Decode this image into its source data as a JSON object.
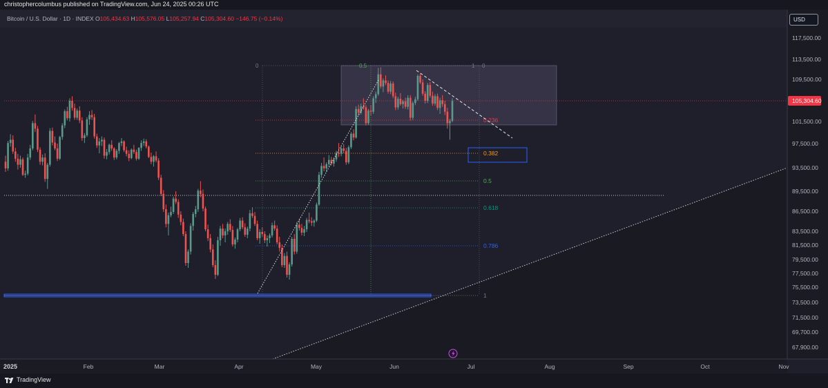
{
  "header": {
    "attribution": "christophercolumbus published on TradingView.com, Jun 24, 2025 00:26 UTC"
  },
  "legend": {
    "symbol": "Bitcoin / U.S. Dollar · 1D · INDEX",
    "open_label": "O",
    "open": "105,434.63",
    "high_label": "H",
    "high": "105,576.05",
    "low_label": "L",
    "low": "105,257.94",
    "close_label": "C",
    "close": "105,304.60",
    "change": "−146.75 (−0.14%)"
  },
  "currency": "USD",
  "footer": {
    "brand": "TradingView"
  },
  "colors": {
    "up": "#5b9a8b",
    "down": "#ef5350",
    "background": "#1e1f2b",
    "price_tag": "#f23645"
  },
  "chart_data": {
    "type": "candlestick",
    "x_ticks": [
      "2025",
      "Feb",
      "Mar",
      "Apr",
      "May",
      "Jun",
      "Jul",
      "Aug",
      "Sep",
      "Oct",
      "Nov"
    ],
    "y_ticks": [
      "117,500.00",
      "113,500.00",
      "109,500.00",
      "105,304.60",
      "101,500.00",
      "97,500.00",
      "93,500.00",
      "89,500.00",
      "86,500.00",
      "83,500.00",
      "81,500.00",
      "79,500.00",
      "77,500.00",
      "75,500.00",
      "73,500.00",
      "71,500.00",
      "69,700.00",
      "67,900.00"
    ],
    "last_price": "105,304.60",
    "fib_retracement": {
      "levels": [
        "0",
        "0.236",
        "0.382",
        "0.5",
        "0.618",
        "0.786",
        "1"
      ],
      "colors": [
        "#787b86",
        "#f23645",
        "#ff9800",
        "#4caf50",
        "#089981",
        "#2962ff",
        "#787b86"
      ]
    },
    "fib_marker_left": "0",
    "fib_marker_mid": "0.5",
    "fib_marker_right": "1",
    "events_icon": "lightning-icon",
    "candles": [
      [
        94500,
        95500,
        92800,
        93400
      ],
      [
        93400,
        98000,
        93000,
        97600
      ],
      [
        97600,
        99200,
        97000,
        98200
      ],
      [
        98200,
        99000,
        95800,
        96200
      ],
      [
        96200,
        96800,
        94500,
        95000
      ],
      [
        95000,
        95800,
        93200,
        94000
      ],
      [
        94000,
        95500,
        93500,
        94900
      ],
      [
        94900,
        95200,
        92100,
        92300
      ],
      [
        92300,
        93000,
        91800,
        92500
      ],
      [
        92500,
        95800,
        92200,
        95200
      ],
      [
        95200,
        97300,
        94800,
        96700
      ],
      [
        96700,
        101600,
        96400,
        101200
      ],
      [
        101200,
        102800,
        99600,
        100200
      ],
      [
        100200,
        100700,
        96100,
        96500
      ],
      [
        96500,
        96900,
        94000,
        94500
      ],
      [
        94500,
        95700,
        93900,
        95200
      ],
      [
        95200,
        95900,
        91100,
        91600
      ],
      [
        91600,
        94300,
        89900,
        94000
      ],
      [
        94000,
        100300,
        93700,
        99800
      ],
      [
        99800,
        100400,
        97200,
        97700
      ],
      [
        97700,
        98800,
        96400,
        96700
      ],
      [
        96700,
        97500,
        94600,
        95000
      ],
      [
        95000,
        98900,
        94800,
        98700
      ],
      [
        98700,
        101200,
        98200,
        100800
      ],
      [
        100800,
        103700,
        100300,
        103400
      ],
      [
        103400,
        104200,
        101700,
        102100
      ],
      [
        102100,
        105800,
        101500,
        105300
      ],
      [
        105300,
        106200,
        103500,
        104000
      ],
      [
        104000,
        104800,
        101800,
        102200
      ],
      [
        102200,
        103900,
        101800,
        103500
      ],
      [
        103500,
        104300,
        101200,
        101700
      ],
      [
        101700,
        102300,
        98000,
        98500
      ],
      [
        98500,
        99400,
        97600,
        99000
      ],
      [
        99000,
        102300,
        98700,
        101900
      ],
      [
        101900,
        103400,
        100900,
        102700
      ],
      [
        102700,
        103600,
        101800,
        102300
      ],
      [
        102300,
        102900,
        98400,
        98800
      ],
      [
        98800,
        99300,
        96800,
        97200
      ],
      [
        97200,
        98500,
        95900,
        97900
      ],
      [
        97900,
        98800,
        97100,
        98200
      ],
      [
        98200,
        98600,
        95000,
        95500
      ],
      [
        95500,
        96600,
        94900,
        96100
      ],
      [
        96100,
        97500,
        95700,
        97300
      ],
      [
        97300,
        98100,
        96300,
        96700
      ],
      [
        96700,
        96900,
        94800,
        95200
      ],
      [
        95200,
        96600,
        94900,
        96300
      ],
      [
        96300,
        97800,
        95800,
        97600
      ],
      [
        97600,
        98500,
        97100,
        97900
      ],
      [
        97900,
        98100,
        96100,
        96400
      ],
      [
        96400,
        97000,
        95400,
        95800
      ],
      [
        95800,
        96400,
        94600,
        95100
      ],
      [
        95100,
        96700,
        94900,
        96500
      ],
      [
        96500,
        97300,
        95800,
        96100
      ],
      [
        96100,
        96500,
        94700,
        95000
      ],
      [
        95000,
        96900,
        94800,
        96800
      ],
      [
        96800,
        98100,
        96300,
        97600
      ],
      [
        97600,
        98400,
        97100,
        97900
      ],
      [
        97900,
        98300,
        96700,
        97000
      ],
      [
        97000,
        97200,
        95100,
        95300
      ],
      [
        95300,
        96000,
        94100,
        94500
      ],
      [
        94500,
        95600,
        93700,
        95400
      ],
      [
        95400,
        96200,
        94400,
        94700
      ],
      [
        94700,
        95100,
        91400,
        91800
      ],
      [
        91800,
        92300,
        88800,
        89100
      ],
      [
        89100,
        89700,
        86400,
        86800
      ],
      [
        86800,
        87500,
        84100,
        84600
      ],
      [
        84600,
        86300,
        82900,
        85900
      ],
      [
        85900,
        87200,
        85600,
        86400
      ],
      [
        86400,
        88700,
        86100,
        88400
      ],
      [
        88400,
        89500,
        87600,
        87900
      ],
      [
        87900,
        88300,
        85500,
        86000
      ],
      [
        86000,
        86500,
        84400,
        84900
      ],
      [
        84900,
        85400,
        82800,
        83100
      ],
      [
        83100,
        83500,
        78600,
        79000
      ],
      [
        79000,
        80900,
        78300,
        80600
      ],
      [
        80600,
        84700,
        80200,
        84300
      ],
      [
        84300,
        86400,
        83600,
        86100
      ],
      [
        86100,
        87300,
        85600,
        86800
      ],
      [
        86800,
        89900,
        86400,
        89600
      ],
      [
        89600,
        91200,
        88600,
        89100
      ],
      [
        89100,
        89800,
        86500,
        86900
      ],
      [
        86900,
        87200,
        83500,
        83800
      ],
      [
        83800,
        84500,
        82100,
        82500
      ],
      [
        82500,
        83100,
        80500,
        80900
      ],
      [
        80900,
        81600,
        78400,
        78700
      ],
      [
        78700,
        79400,
        76700,
        77300
      ],
      [
        77300,
        82700,
        77100,
        82200
      ],
      [
        82200,
        84300,
        81400,
        83900
      ],
      [
        83900,
        84600,
        82500,
        82900
      ],
      [
        82900,
        83900,
        81900,
        83500
      ],
      [
        83500,
        84900,
        83000,
        84600
      ],
      [
        84600,
        85300,
        83400,
        83700
      ],
      [
        83700,
        84300,
        81300,
        81600
      ],
      [
        81600,
        82600,
        81000,
        82300
      ],
      [
        82300,
        84000,
        81900,
        83800
      ],
      [
        83800,
        85500,
        83500,
        85100
      ],
      [
        85100,
        85600,
        83800,
        84100
      ],
      [
        84100,
        84700,
        82700,
        83000
      ],
      [
        83000,
        84200,
        82500,
        83900
      ],
      [
        83900,
        86700,
        83500,
        86200
      ],
      [
        86200,
        87100,
        85500,
        85800
      ],
      [
        85800,
        86400,
        84300,
        84600
      ],
      [
        84600,
        85100,
        82200,
        82500
      ],
      [
        82500,
        83800,
        81700,
        83400
      ],
      [
        83400,
        84100,
        82700,
        83100
      ],
      [
        83100,
        83500,
        81800,
        82200
      ],
      [
        82200,
        82900,
        81300,
        82500
      ],
      [
        82500,
        83200,
        81800,
        82900
      ],
      [
        82900,
        84800,
        82600,
        84400
      ],
      [
        84400,
        85100,
        83600,
        83900
      ],
      [
        83900,
        84400,
        81600,
        81900
      ],
      [
        81900,
        82700,
        80600,
        81100
      ],
      [
        81100,
        81600,
        78400,
        78700
      ],
      [
        78700,
        80400,
        78300,
        80000
      ],
      [
        80000,
        80600,
        76900,
        77300
      ],
      [
        77300,
        79100,
        76600,
        78800
      ],
      [
        78800,
        82700,
        78500,
        82400
      ],
      [
        82400,
        83100,
        80200,
        80600
      ],
      [
        80600,
        84900,
        80300,
        84500
      ],
      [
        84500,
        85400,
        83600,
        84000
      ],
      [
        84000,
        84600,
        82900,
        83300
      ],
      [
        83300,
        84300,
        82800,
        83800
      ],
      [
        83800,
        85500,
        83400,
        85200
      ],
      [
        85200,
        86300,
        84700,
        85000
      ],
      [
        85000,
        85600,
        84300,
        84800
      ],
      [
        84800,
        85300,
        84200,
        85100
      ],
      [
        85100,
        87800,
        84900,
        87500
      ],
      [
        87500,
        92800,
        87300,
        92300
      ],
      [
        92300,
        94300,
        91800,
        93800
      ],
      [
        93800,
        95200,
        92900,
        93400
      ],
      [
        93400,
        94400,
        92800,
        94100
      ],
      [
        94100,
        95600,
        93600,
        94800
      ],
      [
        94800,
        95300,
        93900,
        94200
      ],
      [
        94200,
        95200,
        93700,
        94900
      ],
      [
        94900,
        96300,
        94500,
        96000
      ],
      [
        96000,
        97600,
        95300,
        95800
      ],
      [
        95800,
        97100,
        95400,
        96700
      ],
      [
        96700,
        97400,
        95900,
        96300
      ],
      [
        96300,
        96800,
        94000,
        94400
      ],
      [
        94400,
        97200,
        94100,
        96900
      ],
      [
        96900,
        99600,
        96600,
        99300
      ],
      [
        99300,
        100100,
        98100,
        98600
      ],
      [
        98600,
        104300,
        98400,
        103800
      ],
      [
        103800,
        104600,
        102600,
        103100
      ],
      [
        103100,
        104800,
        102800,
        104300
      ],
      [
        104300,
        105800,
        103700,
        104100
      ],
      [
        104100,
        104500,
        100800,
        101200
      ],
      [
        101200,
        103800,
        100900,
        103500
      ],
      [
        103500,
        104500,
        102600,
        103300
      ],
      [
        103300,
        106200,
        102900,
        105800
      ],
      [
        105800,
        107100,
        104900,
        106600
      ],
      [
        106600,
        111800,
        106300,
        110500
      ],
      [
        110500,
        111900,
        107700,
        108100
      ],
      [
        108100,
        109700,
        107000,
        109300
      ],
      [
        109300,
        110300,
        108400,
        108800
      ],
      [
        108800,
        109300,
        106700,
        107100
      ],
      [
        107100,
        109200,
        106600,
        108700
      ],
      [
        108700,
        109100,
        105800,
        106200
      ],
      [
        106200,
        106900,
        103600,
        104100
      ],
      [
        104100,
        106100,
        103700,
        105700
      ],
      [
        105700,
        106800,
        104400,
        104700
      ],
      [
        104700,
        105500,
        103900,
        105200
      ],
      [
        105200,
        105900,
        103800,
        104200
      ],
      [
        104200,
        106400,
        103700,
        105900
      ],
      [
        105900,
        106400,
        101700,
        102200
      ],
      [
        102200,
        105200,
        101800,
        104900
      ],
      [
        104900,
        106100,
        104500,
        105600
      ],
      [
        105600,
        110500,
        105300,
        110200
      ],
      [
        110200,
        110600,
        108600,
        108900
      ],
      [
        108900,
        109500,
        106300,
        106700
      ],
      [
        106700,
        107200,
        104800,
        105300
      ],
      [
        105300,
        108800,
        104900,
        108400
      ],
      [
        108400,
        109000,
        105900,
        106300
      ],
      [
        106300,
        107100,
        104400,
        104800
      ],
      [
        104800,
        106600,
        104400,
        106200
      ],
      [
        106200,
        106700,
        103600,
        104000
      ],
      [
        104000,
        105900,
        102900,
        105400
      ],
      [
        105400,
        106400,
        104200,
        104700
      ],
      [
        104700,
        105300,
        102700,
        103300
      ],
      [
        103300,
        104000,
        100200,
        101200
      ],
      [
        101200,
        102000,
        98200,
        101600
      ],
      [
        101600,
        105800,
        101400,
        105300
      ]
    ]
  }
}
